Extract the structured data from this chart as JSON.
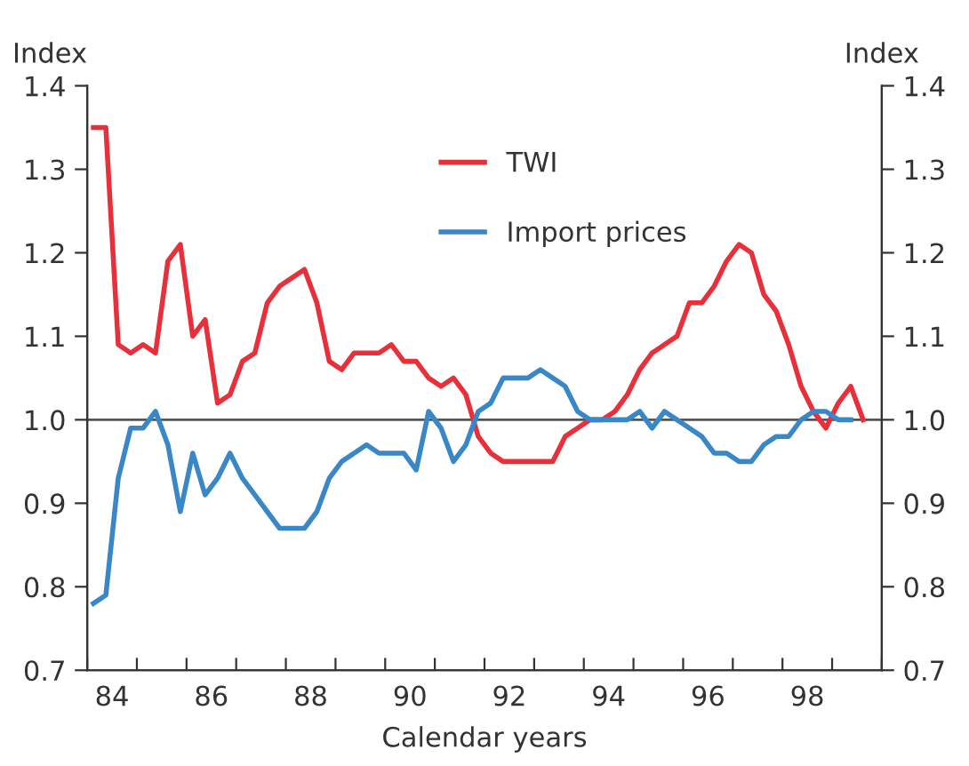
{
  "chart_data": {
    "type": "line",
    "xlabel": "Calendar years",
    "ylabel": "Index",
    "y2label": "Index",
    "xlim": [
      83.5,
      99.5
    ],
    "xticks": [
      {
        "value": 83.5,
        "label": null
      },
      {
        "value": 84.5,
        "label": null
      },
      {
        "value": 85.5,
        "label": null
      },
      {
        "value": 86.5,
        "label": null
      },
      {
        "value": 87.5,
        "label": null
      },
      {
        "value": 88.5,
        "label": null
      },
      {
        "value": 89.5,
        "label": null
      },
      {
        "value": 90.5,
        "label": null
      },
      {
        "value": 91.5,
        "label": null
      },
      {
        "value": 92.5,
        "label": null
      },
      {
        "value": 93.5,
        "label": null
      },
      {
        "value": 94.5,
        "label": null
      },
      {
        "value": 95.5,
        "label": null
      },
      {
        "value": 96.5,
        "label": null
      },
      {
        "value": 97.5,
        "label": null
      },
      {
        "value": 98.5,
        "label": null
      },
      {
        "value": 99.5,
        "label": null
      },
      84,
      86,
      88,
      90,
      92,
      94,
      96,
      98
    ],
    "ylim": [
      0.7,
      1.4
    ],
    "yticks": [
      {
        "value": 0.7,
        "label": "0.7"
      },
      {
        "value": 0.8,
        "label": "0.8"
      },
      {
        "value": 0.9,
        "label": "0.9"
      },
      {
        "value": 1.0,
        "label": "1.0"
      },
      {
        "value": 1.1,
        "label": "1.1"
      },
      {
        "value": 1.2,
        "label": "1.2"
      },
      {
        "value": 1.3,
        "label": "1.3"
      },
      {
        "value": 1.4,
        "label": "1.4"
      }
    ],
    "y2lim": [
      0.7,
      1.4
    ],
    "y2ticks": [
      {
        "value": 0.7,
        "label": "0.7"
      },
      {
        "value": 0.8,
        "label": "0.8"
      },
      {
        "value": 0.9,
        "label": "0.9"
      },
      {
        "value": 1.0,
        "label": "1.0"
      },
      {
        "value": 1.1,
        "label": "1.1"
      },
      {
        "value": 1.2,
        "label": "1.2"
      },
      {
        "value": 1.3,
        "label": "1.3"
      },
      {
        "value": 1.4,
        "label": "1.4"
      }
    ],
    "ref_lines": [
      {
        "axis": "y",
        "value": 1.0,
        "color": "#555555"
      }
    ],
    "legend": "top",
    "grid": false,
    "marker": "none",
    "line_style": "solid",
    "series": [
      {
        "name": "TWI",
        "color": "#e8303a",
        "x": [
          83.625,
          83.875,
          84.125,
          84.375,
          84.625,
          84.875,
          85.125,
          85.375,
          85.625,
          85.875,
          86.125,
          86.375,
          86.625,
          86.875,
          87.125,
          87.375,
          87.625,
          87.875,
          88.125,
          88.375,
          88.625,
          88.875,
          89.125,
          89.375,
          89.625,
          89.875,
          90.125,
          90.375,
          90.625,
          90.875,
          91.125,
          91.375,
          91.625,
          91.875,
          92.125,
          92.375,
          92.625,
          92.875,
          93.125,
          93.375,
          93.625,
          93.875,
          94.125,
          94.375,
          94.625,
          94.875,
          95.125,
          95.375,
          95.625,
          95.875,
          96.125,
          96.375,
          96.625,
          96.875,
          97.125,
          97.375,
          97.625,
          97.875,
          98.125,
          98.375,
          98.625,
          98.875,
          99.125
        ],
        "values": [
          1.35,
          1.35,
          1.09,
          1.08,
          1.09,
          1.08,
          1.19,
          1.21,
          1.1,
          1.12,
          1.02,
          1.03,
          1.07,
          1.08,
          1.14,
          1.16,
          1.17,
          1.18,
          1.14,
          1.07,
          1.06,
          1.08,
          1.08,
          1.08,
          1.09,
          1.07,
          1.07,
          1.05,
          1.04,
          1.05,
          1.03,
          0.98,
          0.96,
          0.95,
          0.95,
          0.95,
          0.95,
          0.95,
          0.98,
          0.99,
          1.0,
          1.0,
          1.01,
          1.03,
          1.06,
          1.08,
          1.09,
          1.1,
          1.14,
          1.14,
          1.16,
          1.19,
          1.21,
          1.2,
          1.15,
          1.13,
          1.09,
          1.04,
          1.01,
          0.99,
          1.02,
          1.04,
          1.0
        ]
      },
      {
        "name": "Import prices",
        "color": "#3a87c8",
        "x": [
          83.625,
          83.875,
          84.125,
          84.375,
          84.625,
          84.875,
          85.125,
          85.375,
          85.625,
          85.875,
          86.125,
          86.375,
          86.625,
          86.875,
          87.125,
          87.375,
          87.625,
          87.875,
          88.125,
          88.375,
          88.625,
          88.875,
          89.125,
          89.375,
          89.625,
          89.875,
          90.125,
          90.375,
          90.625,
          90.875,
          91.125,
          91.375,
          91.625,
          91.875,
          92.125,
          92.375,
          92.625,
          92.875,
          93.125,
          93.375,
          93.625,
          93.875,
          94.125,
          94.375,
          94.625,
          94.875,
          95.125,
          95.375,
          95.625,
          95.875,
          96.125,
          96.375,
          96.625,
          96.875,
          97.125,
          97.375,
          97.625,
          97.875,
          98.125,
          98.375,
          98.625,
          98.875
        ],
        "values": [
          0.78,
          0.79,
          0.93,
          0.99,
          0.99,
          1.01,
          0.97,
          0.89,
          0.96,
          0.91,
          0.93,
          0.96,
          0.93,
          0.91,
          0.89,
          0.87,
          0.87,
          0.87,
          0.89,
          0.93,
          0.95,
          0.96,
          0.97,
          0.96,
          0.96,
          0.96,
          0.94,
          1.01,
          0.99,
          0.95,
          0.97,
          1.01,
          1.02,
          1.05,
          1.05,
          1.05,
          1.06,
          1.05,
          1.04,
          1.01,
          1.0,
          1.0,
          1.0,
          1.0,
          1.01,
          0.99,
          1.01,
          1.0,
          0.99,
          0.98,
          0.96,
          0.96,
          0.95,
          0.95,
          0.97,
          0.98,
          0.98,
          1.0,
          1.01,
          1.01,
          1.0,
          1.0
        ]
      }
    ]
  }
}
